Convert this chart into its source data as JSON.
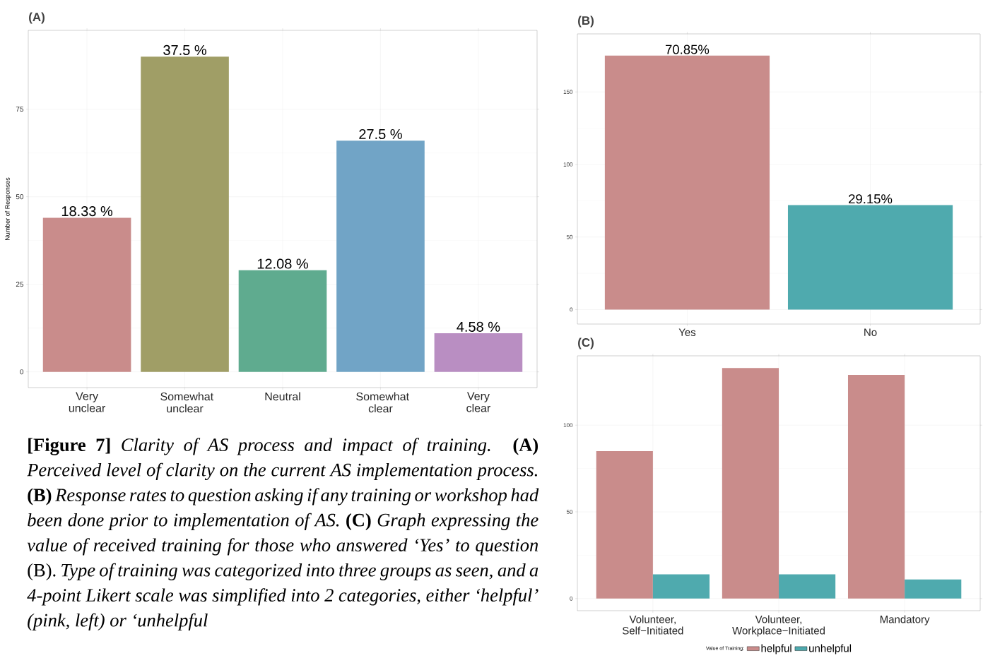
{
  "chart_data": [
    {
      "type": "bar",
      "title": "(A)",
      "ylabel": "Number of Responses",
      "categories": [
        "Very unclear",
        "Somewhat unclear",
        "Neutral",
        "Somewhat clear",
        "Very clear"
      ],
      "values": [
        44,
        90,
        29,
        66,
        11
      ],
      "colors": [
        "#c98c8b",
        "#a09e66",
        "#5fab8f",
        "#71a4c6",
        "#b98ec2"
      ],
      "ylim": [
        -4.5,
        97.5
      ],
      "yticks": [
        0,
        25,
        50,
        75
      ],
      "grid": true,
      "annotations": [
        {
          "text": "18.33 %",
          "x": "Very unclear",
          "y": 44
        },
        {
          "text": "37.5 %",
          "x": "Somewhat unclear",
          "y": 90
        },
        {
          "text": "12.08 %",
          "x": "Neutral",
          "y": 29
        },
        {
          "text": "27.5 %",
          "x": "Somewhat clear",
          "y": 66
        },
        {
          "text": "4.58 %",
          "x": "Very clear",
          "y": 11
        },
        "**[Figure 7]** *Clarity of AS process and impact of training.* **(A)** *Perceived level of clarity on the current AS implementation process.* **(B)** *Response rates to question asking if any training or workshop had been done prior to implementation of AS.* **(C)** *Graph expressing the value of received training for those who answered ‘Yes’ to question* (B). *Type of training was categorized into three groups as seen, and a 4-point Likert scale was simplified into 2 categories, either ‘helpful’ (pink, left) or ‘unhelpful*"
      ]
    },
    {
      "type": "bar",
      "title": "(B)",
      "categories": [
        "Yes",
        "No"
      ],
      "values": [
        175,
        72
      ],
      "colors": [
        "#c98c8b",
        "#4faaae"
      ],
      "ylim": [
        -10,
        190
      ],
      "yticks": [
        0,
        50,
        100,
        150
      ],
      "grid": true,
      "annotations": [
        {
          "text": "70.85%",
          "x": "Yes",
          "y": 175
        },
        {
          "text": "29.15%",
          "x": "No",
          "y": 72
        }
      ]
    },
    {
      "type": "bar",
      "title": "(C)",
      "categories": [
        "Volunteer, Self−Initiated",
        "Volunteer, Workplace−Initiated",
        "Mandatory"
      ],
      "series": [
        {
          "name": "helpful",
          "color": "#c98c8b",
          "values": [
            85,
            133,
            129
          ]
        },
        {
          "name": "unhelpful",
          "color": "#4faaae",
          "values": [
            14,
            14,
            11
          ]
        }
      ],
      "ylim": [
        -7,
        140
      ],
      "yticks": [
        0,
        50,
        100
      ],
      "grid": true,
      "legend": "bottom",
      "legend_title": "Value of Training:"
    }
  ]
}
